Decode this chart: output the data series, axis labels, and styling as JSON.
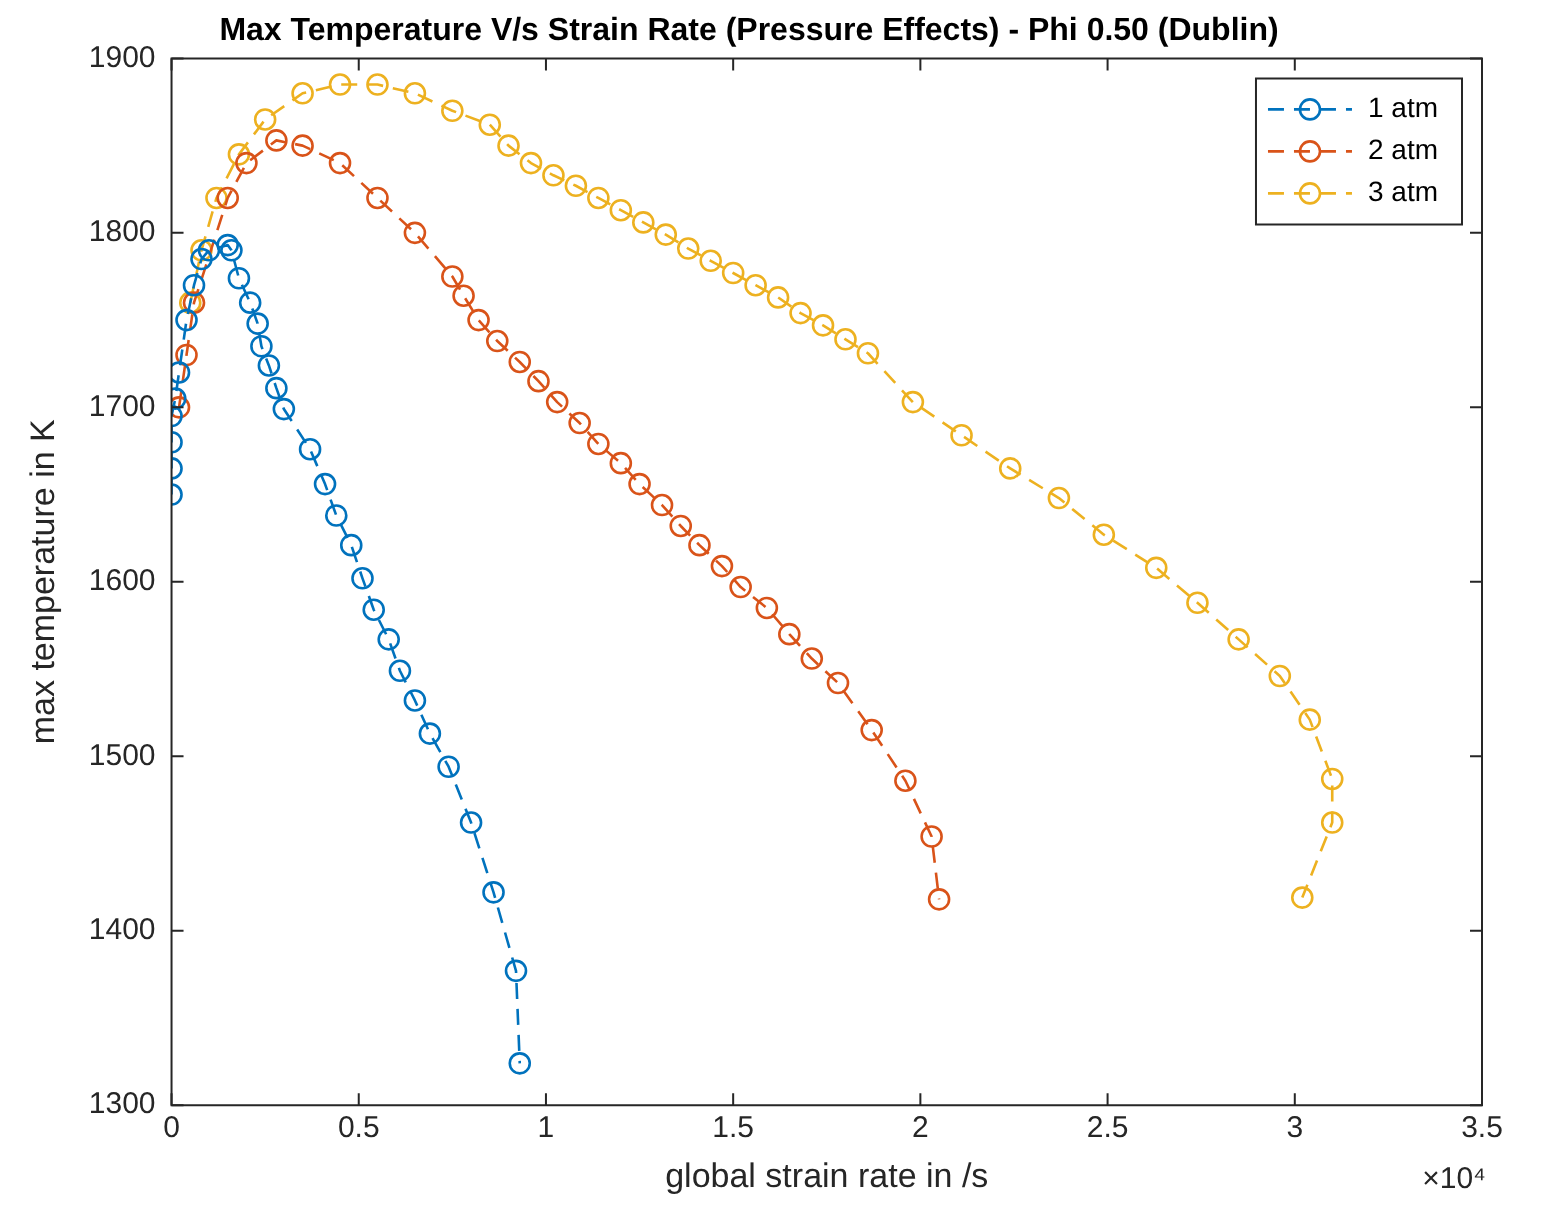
{
  "chart_data": {
    "type": "line",
    "title": "Max Temperature V/s Strain Rate (Pressure Effects) - Phi 0.50 (Dublin)",
    "xlabel": "global strain rate in /s",
    "ylabel": "max temperature in K",
    "annotations": [
      "×10⁴"
    ],
    "xlim": [
      0,
      3.5
    ],
    "xticks": [
      0,
      0.5,
      1,
      1.5,
      2,
      2.5,
      3,
      3.5
    ],
    "ylim": [
      1300,
      1900
    ],
    "yticks": [
      1300,
      1400,
      1500,
      1600,
      1700,
      1800,
      1900
    ],
    "grid": false,
    "legend": "top right",
    "marker": "circle",
    "line_style": "dashed",
    "series": [
      {
        "name": "1 atm",
        "color": "#0072bd",
        "x": [
          0,
          0,
          0,
          0,
          0.01,
          0.02,
          0.04,
          0.06,
          0.08,
          0.1,
          0.15,
          0.16,
          0.18,
          0.21,
          0.23,
          0.24,
          0.26,
          0.28,
          0.3,
          0.37,
          0.41,
          0.44,
          0.48,
          0.51,
          0.54,
          0.58,
          0.61,
          0.65,
          0.69,
          0.74,
          0.8,
          0.86,
          0.92,
          0.93
        ],
        "values": [
          1650,
          1665,
          1680,
          1695,
          1705,
          1720,
          1750,
          1770,
          1785,
          1790,
          1793,
          1790,
          1774,
          1760,
          1748,
          1735,
          1724,
          1711,
          1699,
          1676,
          1656,
          1638,
          1621,
          1602,
          1584,
          1567,
          1549,
          1532,
          1513,
          1494,
          1462,
          1422,
          1377,
          1324
        ]
      },
      {
        "name": "2 atm",
        "color": "#d95319",
        "x": [
          0.02,
          0.04,
          0.06,
          0.15,
          0.2,
          0.28,
          0.35,
          0.45,
          0.55,
          0.65,
          0.75,
          0.78,
          0.82,
          0.87,
          0.93,
          0.98,
          1.03,
          1.09,
          1.14,
          1.2,
          1.25,
          1.31,
          1.36,
          1.41,
          1.47,
          1.52,
          1.59,
          1.65,
          1.71,
          1.78,
          1.87,
          1.96,
          2.03,
          2.05
        ],
        "values": [
          1700,
          1730,
          1760,
          1820,
          1840,
          1853,
          1850,
          1840,
          1820,
          1800,
          1775,
          1764,
          1750,
          1738,
          1726,
          1715,
          1703,
          1691,
          1679,
          1668,
          1656,
          1644,
          1632,
          1621,
          1609,
          1597,
          1585,
          1570,
          1556,
          1542,
          1515,
          1486,
          1454,
          1418
        ]
      },
      {
        "name": "3 atm",
        "color": "#edb120",
        "x": [
          0.05,
          0.08,
          0.12,
          0.18,
          0.25,
          0.35,
          0.45,
          0.55,
          0.65,
          0.75,
          0.85,
          0.9,
          0.96,
          1.02,
          1.08,
          1.14,
          1.2,
          1.26,
          1.32,
          1.38,
          1.44,
          1.5,
          1.56,
          1.62,
          1.68,
          1.74,
          1.8,
          1.86,
          1.98,
          2.11,
          2.24,
          2.37,
          2.49,
          2.63,
          2.74,
          2.85,
          2.96,
          3.04,
          3.1,
          3.1,
          3.02
        ],
        "values": [
          1760,
          1790,
          1820,
          1845,
          1865,
          1880,
          1885,
          1885,
          1880,
          1870,
          1862,
          1850,
          1840,
          1833,
          1827,
          1820,
          1813,
          1806,
          1799,
          1791,
          1784,
          1777,
          1770,
          1763,
          1754,
          1747,
          1739,
          1731,
          1703,
          1684,
          1665,
          1648,
          1627,
          1608,
          1588,
          1567,
          1546,
          1521,
          1487,
          1462,
          1419
        ]
      }
    ]
  }
}
